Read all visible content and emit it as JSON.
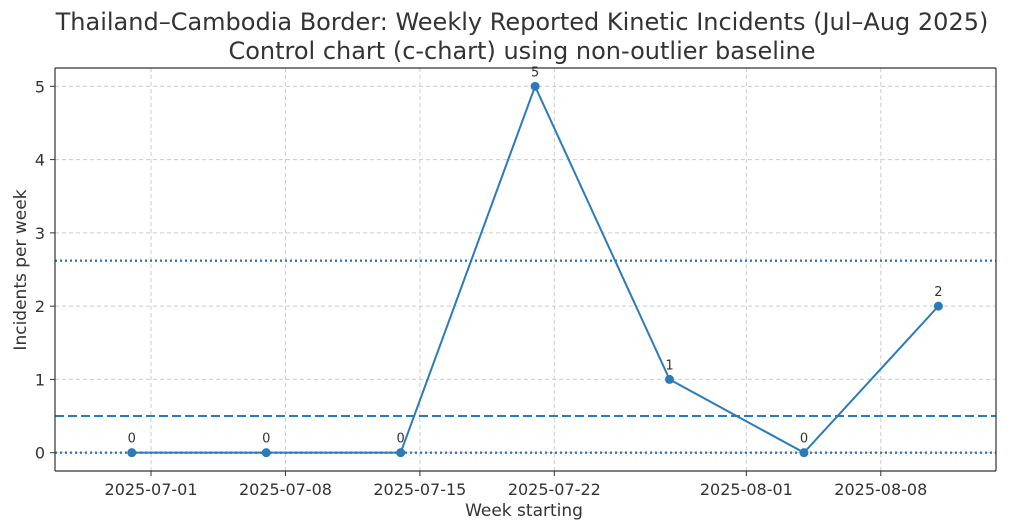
{
  "chart_data": {
    "type": "line",
    "title": "Thailand–Cambodia Border: Weekly Reported Kinetic Incidents (Jul–Aug 2025)",
    "subtitle": "Control chart (c-chart) using non-outlier baseline",
    "xlabel": "Week starting",
    "ylabel": "Incidents per week",
    "x_range": [
      "2025-06-26",
      "2025-08-14"
    ],
    "ylim": [
      -0.25,
      5.25
    ],
    "x_ticks": [
      "2025-07-01",
      "2025-07-08",
      "2025-07-15",
      "2025-07-22",
      "2025-08-01",
      "2025-08-08"
    ],
    "y_ticks": [
      0,
      1,
      2,
      3,
      4,
      5
    ],
    "grid": true,
    "series": [
      {
        "x": [
          "2025-06-30",
          "2025-07-07",
          "2025-07-14",
          "2025-07-21",
          "2025-07-28",
          "2025-08-04",
          "2025-08-11"
        ],
        "values": [
          0,
          0,
          0,
          5,
          1,
          0,
          2
        ],
        "color": "#2b7bba"
      }
    ],
    "data_labels": [
      "0",
      "0",
      "0",
      "5",
      "1",
      "0",
      "2"
    ],
    "reference_lines": [
      {
        "kind": "center-line",
        "value": 0.5,
        "style": "dashed",
        "color": "#2b7bba"
      },
      {
        "kind": "upper-control-limit",
        "value": 2.62,
        "style": "dotted",
        "color": "#2b7bba"
      },
      {
        "kind": "lower-control-limit",
        "value": 0,
        "style": "dotted",
        "color": "#2b7bba"
      }
    ]
  }
}
